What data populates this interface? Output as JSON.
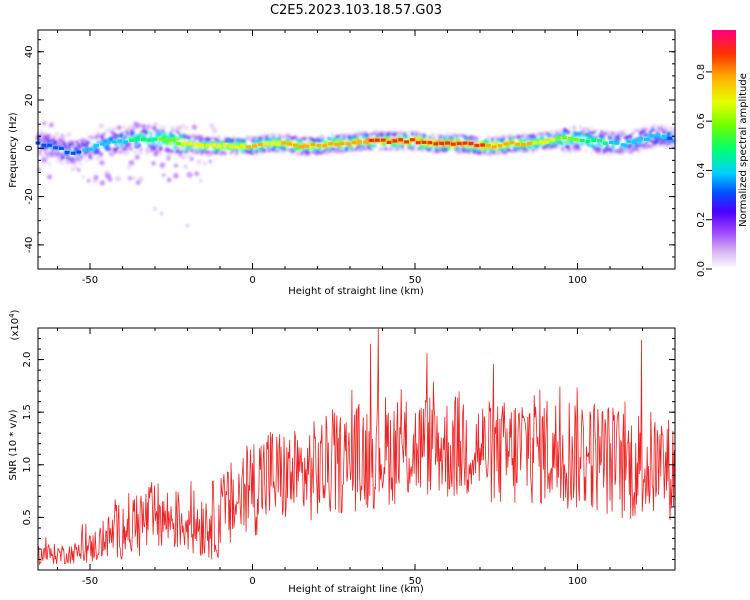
{
  "title": "C2E5.2023.103.18.57.G03",
  "chart_data": [
    {
      "type": "heatmap",
      "xlabel": "Height of straight line (km)",
      "ylabel": "Frequency (Hz)",
      "xlim": [
        -66,
        130
      ],
      "ylim": [
        -50,
        49
      ],
      "xticks": [
        -50,
        0,
        50,
        100
      ],
      "yticks": [
        -40,
        -20,
        0,
        20,
        40
      ],
      "colorbar": {
        "label": "Normalized spectral amplitude",
        "range": [
          0,
          0.97
        ],
        "ticks": [
          "0.0",
          "0.2",
          "0.4",
          "0.6",
          "0.8"
        ],
        "colors": [
          "#ffffff",
          "#d8b8f0",
          "#9a40ff",
          "#4b00ff",
          "#0050ff",
          "#00d0ff",
          "#00ff70",
          "#70ff00",
          "#e8ff00",
          "#ffb000",
          "#ff3000",
          "#ff0080"
        ]
      },
      "ridge": {
        "x": [
          -65,
          -60,
          -55,
          -50,
          -45,
          -40,
          -35,
          -30,
          -25,
          -20,
          -15,
          -10,
          -5,
          0,
          5,
          10,
          15,
          20,
          25,
          30,
          35,
          40,
          45,
          50,
          55,
          60,
          65,
          70,
          75,
          80,
          85,
          90,
          95,
          100,
          105,
          110,
          115,
          120,
          125,
          130
        ],
        "frequency": [
          2,
          0,
          -2,
          0,
          2,
          3,
          4,
          4,
          3,
          2,
          1,
          1,
          1,
          1,
          2,
          2,
          1,
          1,
          2,
          2,
          3,
          3,
          3,
          3,
          2,
          2,
          2,
          1,
          1,
          2,
          2,
          3,
          4,
          4,
          3,
          2,
          2,
          4,
          5,
          4
        ],
        "amplitude": [
          0.35,
          0.38,
          0.4,
          0.42,
          0.45,
          0.48,
          0.52,
          0.58,
          0.62,
          0.7,
          0.78,
          0.74,
          0.72,
          0.8,
          0.76,
          0.78,
          0.82,
          0.78,
          0.8,
          0.85,
          0.86,
          0.88,
          0.9,
          0.92,
          0.9,
          0.93,
          0.91,
          0.9,
          0.82,
          0.8,
          0.78,
          0.72,
          0.66,
          0.6,
          0.55,
          0.5,
          0.48,
          0.45,
          0.42,
          0.4
        ]
      }
    },
    {
      "type": "line",
      "xlabel": "Height of straight line (km)",
      "ylabel": "SNR (10 * v/v)",
      "y_multiplier": "(x10",
      "y_multiplier_exp": "4",
      "y_multiplier_close": ")",
      "xlim": [
        -66,
        130
      ],
      "ylim": [
        0,
        2.3
      ],
      "xticks": [
        -50,
        0,
        50,
        100
      ],
      "yticks": [
        0.5,
        1.0,
        1.5,
        2.0
      ],
      "ytick_labels": [
        "0.5",
        "1.0",
        "1.5",
        "2.0"
      ],
      "series": [
        {
          "color": "#ee2222",
          "x": [
            -65,
            -60,
            -55,
            -50,
            -45,
            -40,
            -35,
            -30,
            -25,
            -20,
            -15,
            -10,
            -5,
            0,
            5,
            10,
            15,
            20,
            25,
            30,
            35,
            40,
            45,
            50,
            55,
            60,
            65,
            70,
            75,
            80,
            85,
            90,
            95,
            100,
            105,
            110,
            115,
            120,
            125,
            130
          ],
          "mean": [
            0.15,
            0.15,
            0.16,
            0.2,
            0.3,
            0.4,
            0.45,
            0.5,
            0.48,
            0.45,
            0.45,
            0.5,
            0.65,
            0.8,
            0.9,
            0.88,
            0.9,
            0.95,
            1.0,
            1.05,
            1.1,
            1.15,
            1.12,
            1.15,
            1.2,
            1.15,
            1.2,
            1.15,
            1.1,
            1.1,
            1.2,
            1.15,
            1.1,
            1.15,
            1.1,
            1.05,
            1.0,
            1.0,
            1.0,
            0.95
          ],
          "spread": [
            0.1,
            0.1,
            0.1,
            0.15,
            0.2,
            0.3,
            0.35,
            0.35,
            0.3,
            0.3,
            0.35,
            0.4,
            0.45,
            0.5,
            0.5,
            0.45,
            0.45,
            0.5,
            0.5,
            0.5,
            0.55,
            0.55,
            0.5,
            0.5,
            0.5,
            0.5,
            0.55,
            0.5,
            0.5,
            0.55,
            0.6,
            0.55,
            0.55,
            0.6,
            0.55,
            0.55,
            0.55,
            0.55,
            0.5,
            0.5
          ]
        }
      ]
    }
  ]
}
